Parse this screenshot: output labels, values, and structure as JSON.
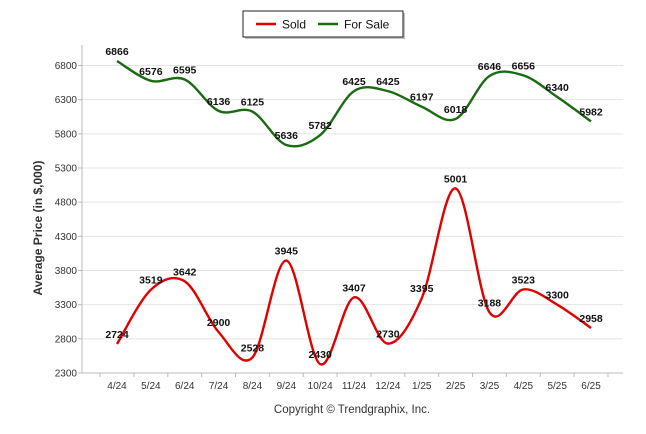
{
  "chart_data": {
    "type": "line",
    "categories": [
      "4/24",
      "5/24",
      "6/24",
      "7/24",
      "8/24",
      "9/24",
      "10/24",
      "11/24",
      "12/24",
      "1/25",
      "2/25",
      "3/25",
      "4/25",
      "5/25",
      "6/25"
    ],
    "series": [
      {
        "name": "Sold",
        "color": "#e00000",
        "values": [
          2724,
          3519,
          3642,
          2900,
          2528,
          3945,
          2430,
          3407,
          2730,
          3395,
          5001,
          3188,
          3523,
          3300,
          2958
        ]
      },
      {
        "name": "For Sale",
        "color": "#1a6a12",
        "values": [
          6866,
          6576,
          6595,
          6136,
          6125,
          5636,
          5782,
          6425,
          6425,
          6197,
          6018,
          6646,
          6656,
          6340,
          5982
        ]
      }
    ],
    "ylabel": "Average Price (in $,000)",
    "xlabel": "",
    "ylim": [
      2300,
      7000
    ],
    "yticks": [
      2300,
      2800,
      3300,
      3800,
      4300,
      4800,
      5300,
      5800,
      6300,
      6800
    ],
    "grid": true,
    "legend_position": "top-center",
    "smooth": true
  },
  "credit": "Copyright © Trendgraphix, Inc."
}
